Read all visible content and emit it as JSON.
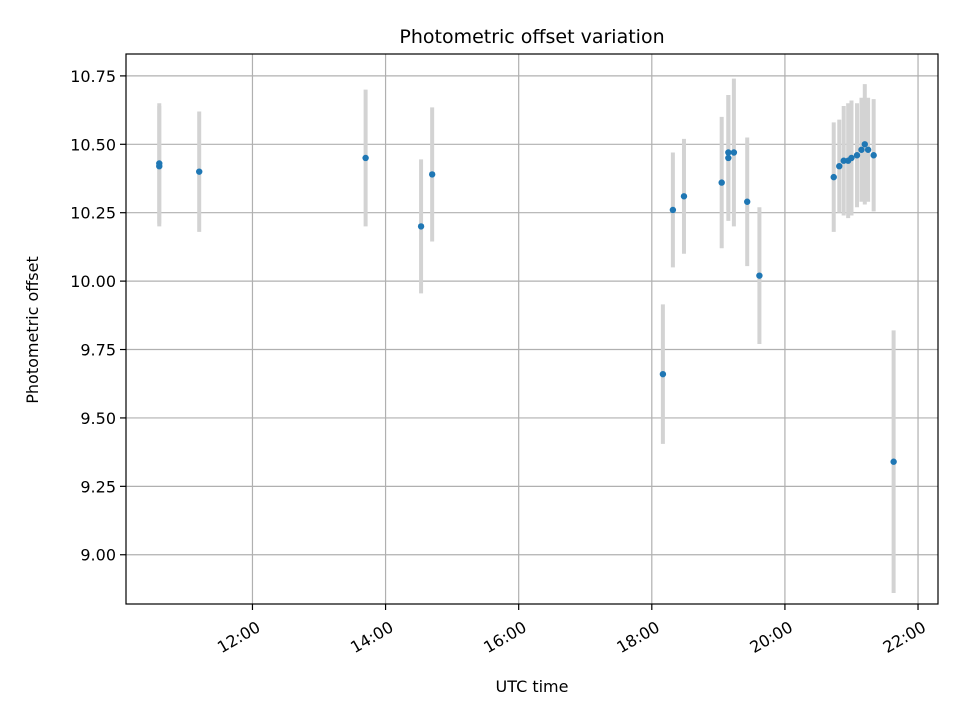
{
  "chart_data": {
    "type": "scatter",
    "title": "Photometric offset variation",
    "xlabel": "UTC time",
    "ylabel": "Photometric offset",
    "x_ticks": [
      "12:00",
      "14:00",
      "16:00",
      "18:00",
      "20:00",
      "22:00"
    ],
    "y_ticks": [
      "9.00",
      "9.25",
      "9.50",
      "9.75",
      "10.00",
      "10.25",
      "10.50",
      "10.75"
    ],
    "xlim": [
      "10:06",
      "22:18"
    ],
    "ylim": [
      8.82,
      10.83
    ],
    "grid": true,
    "marker_color": "#1f77b4",
    "errorbar_color": "#d3d3d3",
    "points": [
      {
        "x": "10:36",
        "y": 10.43,
        "err": 0.22
      },
      {
        "x": "10:36",
        "y": 10.42,
        "err": 0.22
      },
      {
        "x": "11:12",
        "y": 10.4,
        "err": 0.22
      },
      {
        "x": "13:42",
        "y": 10.45,
        "err": 0.25
      },
      {
        "x": "14:32",
        "y": 10.2,
        "err": 0.245
      },
      {
        "x": "14:42",
        "y": 10.39,
        "err": 0.245
      },
      {
        "x": "18:10",
        "y": 9.66,
        "err": 0.255
      },
      {
        "x": "18:19",
        "y": 10.26,
        "err": 0.21
      },
      {
        "x": "18:29",
        "y": 10.31,
        "err": 0.21
      },
      {
        "x": "19:03",
        "y": 10.36,
        "err": 0.24
      },
      {
        "x": "19:09",
        "y": 10.47,
        "err": 0.21
      },
      {
        "x": "19:09",
        "y": 10.45,
        "err": 0.23
      },
      {
        "x": "19:14",
        "y": 10.47,
        "err": 0.27
      },
      {
        "x": "19:26",
        "y": 10.29,
        "err": 0.235
      },
      {
        "x": "19:37",
        "y": 10.02,
        "err": 0.25
      },
      {
        "x": "20:44",
        "y": 10.38,
        "err": 0.2
      },
      {
        "x": "20:49",
        "y": 10.42,
        "err": 0.17
      },
      {
        "x": "20:53",
        "y": 10.44,
        "err": 0.2
      },
      {
        "x": "20:57",
        "y": 10.44,
        "err": 0.21
      },
      {
        "x": "21:00",
        "y": 10.45,
        "err": 0.21
      },
      {
        "x": "21:05",
        "y": 10.46,
        "err": 0.19
      },
      {
        "x": "21:09",
        "y": 10.48,
        "err": 0.19
      },
      {
        "x": "21:12",
        "y": 10.5,
        "err": 0.22
      },
      {
        "x": "21:15",
        "y": 10.48,
        "err": 0.19
      },
      {
        "x": "21:20",
        "y": 10.46,
        "err": 0.205
      },
      {
        "x": "21:38",
        "y": 9.34,
        "err": 0.48
      }
    ]
  }
}
